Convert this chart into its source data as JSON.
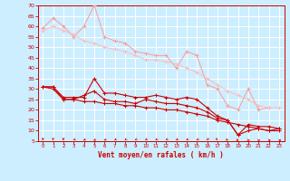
{
  "x": [
    0,
    1,
    2,
    3,
    4,
    5,
    6,
    7,
    8,
    9,
    10,
    11,
    12,
    13,
    14,
    15,
    16,
    17,
    18,
    19,
    20,
    21,
    22,
    23
  ],
  "line1": [
    59,
    64,
    60,
    55,
    60,
    70,
    55,
    53,
    52,
    48,
    47,
    46,
    46,
    40,
    48,
    46,
    32,
    30,
    22,
    20,
    30,
    20,
    21,
    null
  ],
  "line2": [
    58,
    60,
    58,
    56,
    53,
    52,
    50,
    49,
    48,
    46,
    44,
    44,
    43,
    42,
    40,
    38,
    35,
    32,
    29,
    27,
    25,
    22,
    21,
    21
  ],
  "line3": [
    31,
    31,
    26,
    26,
    26,
    35,
    28,
    28,
    27,
    26,
    26,
    27,
    26,
    25,
    26,
    25,
    21,
    17,
    15,
    8,
    13,
    12,
    12,
    11
  ],
  "line4": [
    31,
    31,
    25,
    25,
    27,
    29,
    25,
    24,
    24,
    23,
    25,
    24,
    23,
    23,
    22,
    21,
    19,
    16,
    15,
    8,
    10,
    11,
    10,
    11
  ],
  "line5": [
    31,
    30,
    25,
    25,
    24,
    24,
    23,
    23,
    22,
    22,
    21,
    21,
    20,
    20,
    19,
    18,
    17,
    15,
    14,
    13,
    12,
    11,
    10,
    10
  ],
  "ylim": [
    5,
    70
  ],
  "yticks": [
    5,
    10,
    15,
    20,
    25,
    30,
    35,
    40,
    45,
    50,
    55,
    60,
    65,
    70
  ],
  "xlim": [
    -0.5,
    23.5
  ],
  "xlabel": "Vent moyen/en rafales ( km/h )",
  "bg_color": "#cceeff",
  "grid_color": "#ffffff",
  "line1_color": "#ff9999",
  "line2_color": "#ffbbbb",
  "line3_color": "#cc0000",
  "line4_color": "#cc0000",
  "line5_color": "#cc0000",
  "axis_color": "#cc0000",
  "label_color": "#cc0000",
  "arrow_angles_deg": [
    180,
    180,
    180,
    190,
    195,
    200,
    195,
    190,
    188,
    188,
    188,
    188,
    188,
    188,
    188,
    188,
    185,
    175,
    165,
    155,
    145,
    135,
    125,
    115
  ]
}
